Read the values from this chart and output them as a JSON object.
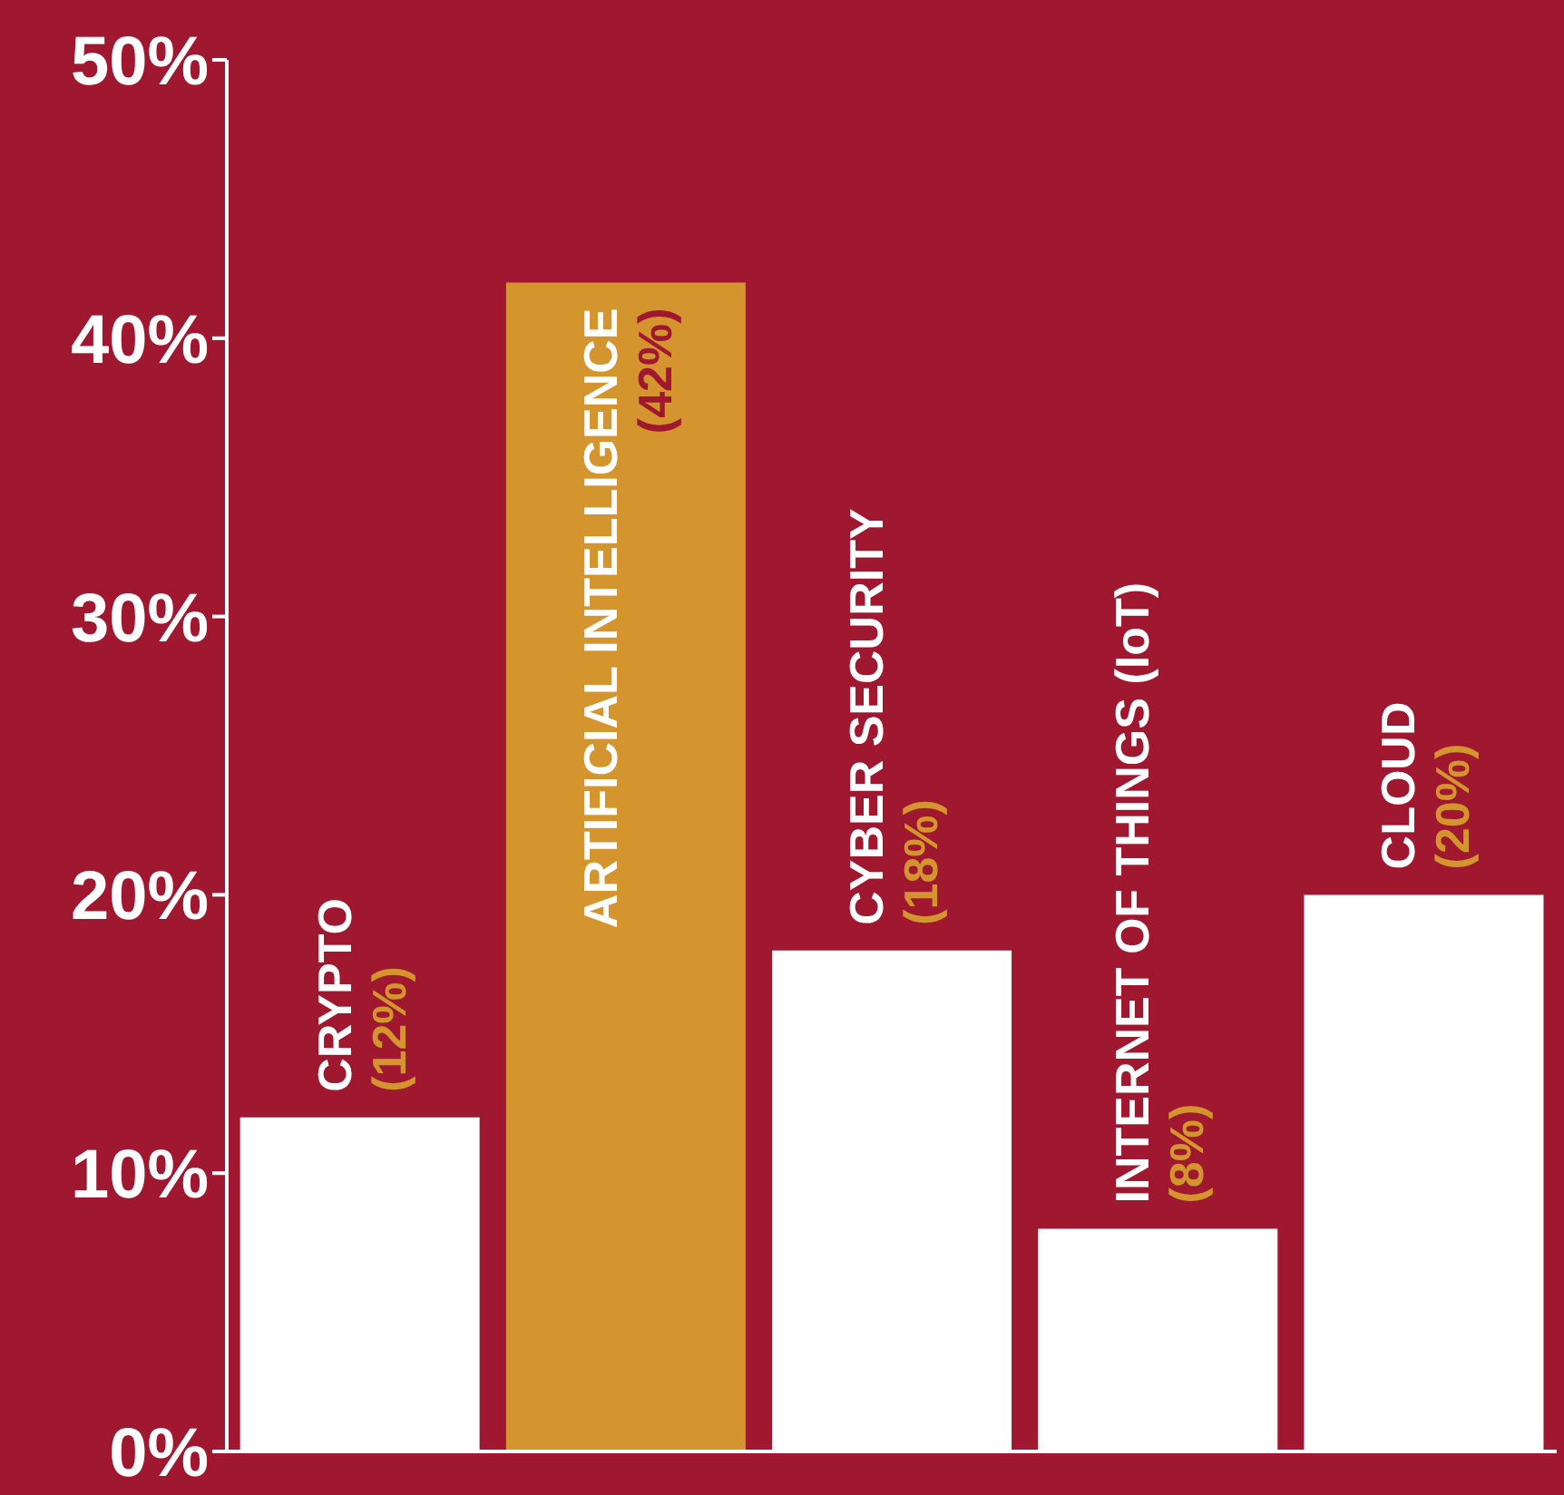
{
  "chart_data": {
    "type": "bar",
    "categories": [
      "CRYPTO",
      "ARTIFICIAL INTELLIGENCE",
      "CYBER SECURITY",
      "INTERNET OF THINGS (IoT)",
      "CLOUD"
    ],
    "values": [
      12,
      42,
      18,
      8,
      20
    ],
    "colors": [
      "#ffffff",
      "#d4952e",
      "#ffffff",
      "#ffffff",
      "#ffffff"
    ],
    "value_labels": [
      "(12%)",
      "(42%)",
      "(18%)",
      "(8%)",
      "(20%)"
    ],
    "ylim": [
      0,
      50
    ],
    "yticks": [
      {
        "value": 0,
        "label": "0%"
      },
      {
        "value": 10,
        "label": "10%"
      },
      {
        "value": 20,
        "label": "20%"
      },
      {
        "value": 30,
        "label": "30%"
      },
      {
        "value": 40,
        "label": "40%"
      },
      {
        "value": 50,
        "label": "50%"
      }
    ]
  }
}
